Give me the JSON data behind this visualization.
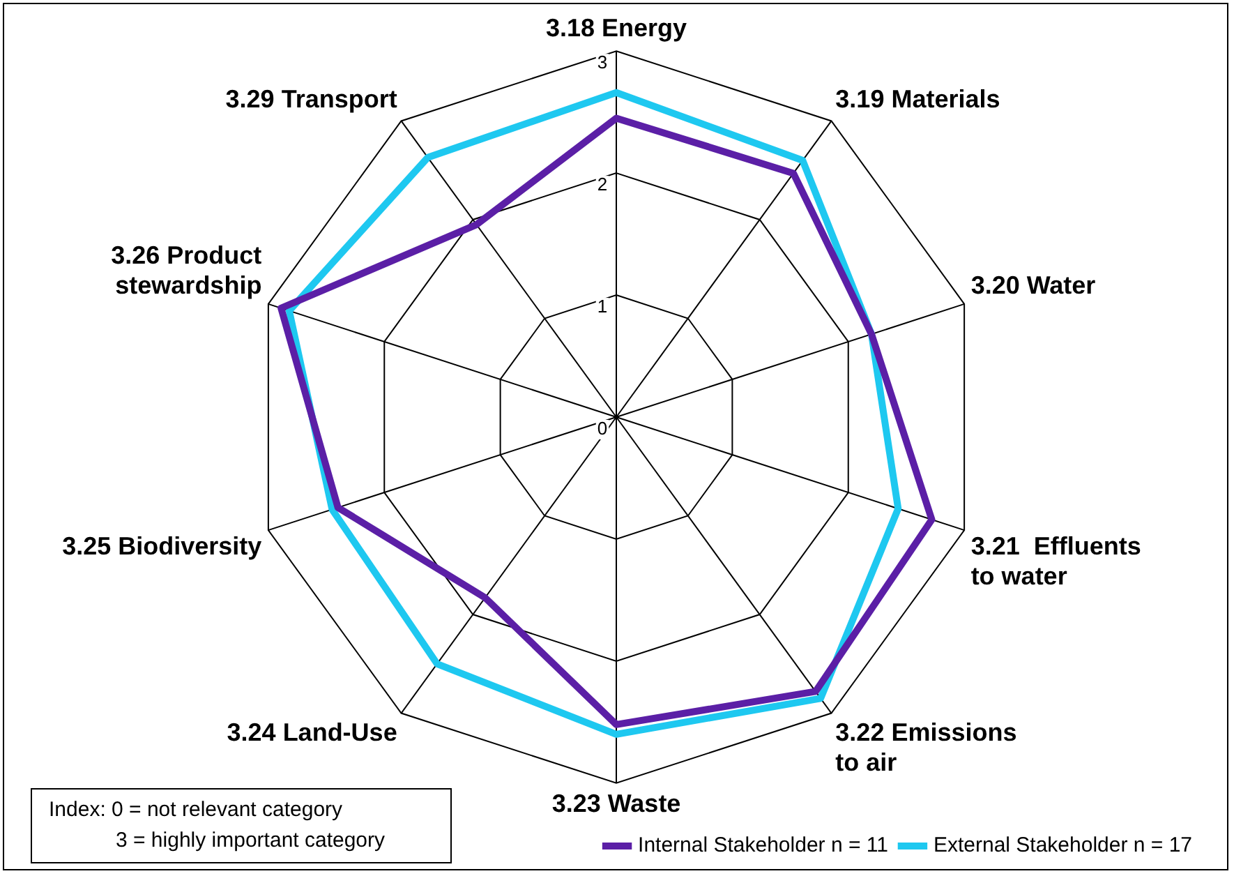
{
  "chart_data": {
    "type": "radar",
    "categories": [
      "3.18 Energy",
      "3.19 Materials",
      "3.20 Water",
      "3.21  Effluents to water",
      "3.22 Emissions to air",
      "3.23 Waste",
      "3.24 Land-Use",
      "3.25 Biodiversity",
      "3.26 Product stewardship",
      "3.29 Transport"
    ],
    "series": [
      {
        "name": "Internal Stakeholder n = 11",
        "color": "#5b1fa6",
        "values": [
          2.45,
          2.47,
          2.2,
          2.72,
          2.78,
          2.52,
          1.83,
          2.4,
          2.89,
          1.95
        ]
      },
      {
        "name": "External Stakeholder n = 17",
        "color": "#1ec8f0",
        "values": [
          2.66,
          2.6,
          2.2,
          2.43,
          2.85,
          2.6,
          2.5,
          2.45,
          2.82,
          2.63
        ]
      }
    ],
    "ylim": [
      0,
      3
    ],
    "yticks": [
      0,
      1,
      2,
      3
    ],
    "legend": "bottom right",
    "grid": true,
    "annotations": [
      "Index: 0 =  not relevant  category",
      "3 = highly important category"
    ]
  }
}
